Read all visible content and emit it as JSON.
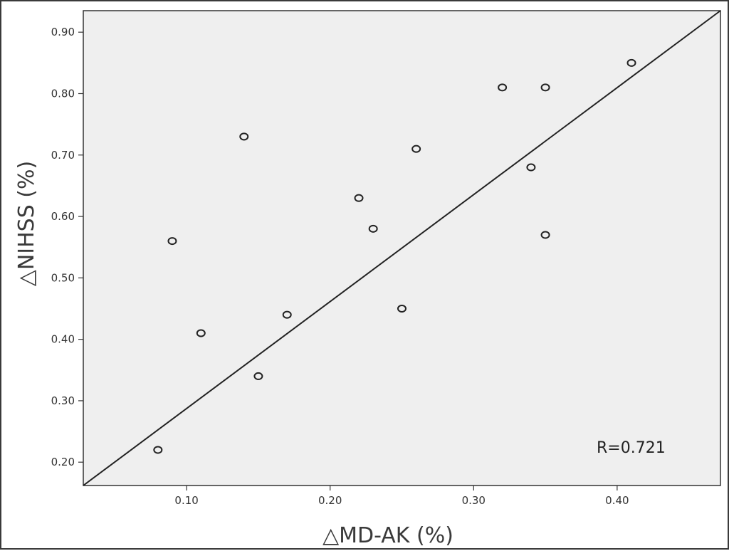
{
  "chart_data": {
    "type": "scatter",
    "xlabel": "△MD-AK (%)",
    "ylabel": "△NIHSS (%)",
    "xlim": [
      0.028,
      0.472
    ],
    "ylim": [
      0.162,
      0.935
    ],
    "x_ticks": [
      "0.10",
      "0.20",
      "0.30",
      "0.40"
    ],
    "y_ticks": [
      "0.20",
      "0.30",
      "0.40",
      "0.50",
      "0.60",
      "0.70",
      "0.80",
      "0.90"
    ],
    "grid": false,
    "points": [
      {
        "x": 0.08,
        "y": 0.22
      },
      {
        "x": 0.09,
        "y": 0.56
      },
      {
        "x": 0.11,
        "y": 0.41
      },
      {
        "x": 0.14,
        "y": 0.73
      },
      {
        "x": 0.15,
        "y": 0.34
      },
      {
        "x": 0.17,
        "y": 0.44
      },
      {
        "x": 0.22,
        "y": 0.63
      },
      {
        "x": 0.23,
        "y": 0.58
      },
      {
        "x": 0.25,
        "y": 0.45
      },
      {
        "x": 0.26,
        "y": 0.71
      },
      {
        "x": 0.32,
        "y": 0.81
      },
      {
        "x": 0.34,
        "y": 0.68
      },
      {
        "x": 0.35,
        "y": 0.81
      },
      {
        "x": 0.35,
        "y": 0.57
      },
      {
        "x": 0.41,
        "y": 0.85
      }
    ],
    "fit_line": {
      "x": [
        0.028,
        0.472
      ],
      "y": [
        0.162,
        0.935
      ]
    },
    "annotation": "R=0.721",
    "colors": {
      "plot_background": "#efefef",
      "marker": "#222222",
      "line": "#222222"
    }
  }
}
